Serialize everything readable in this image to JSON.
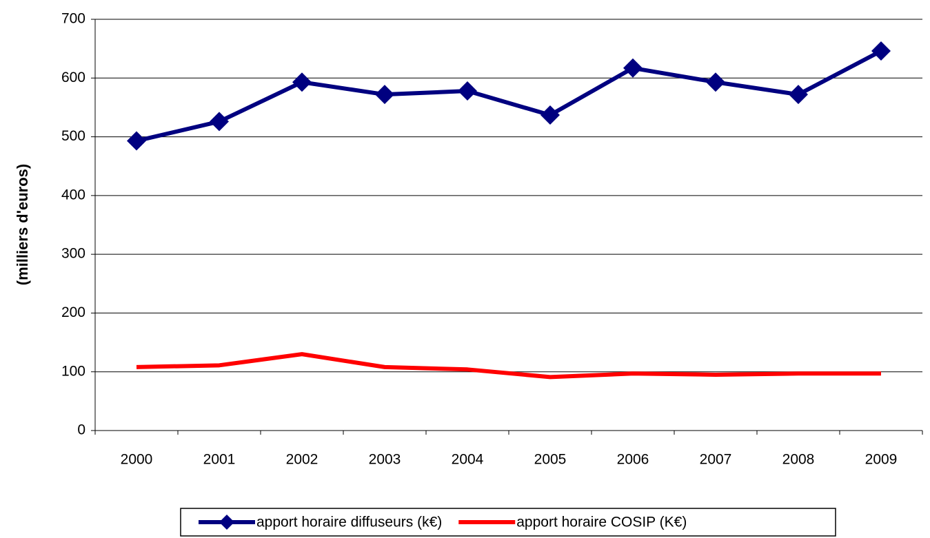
{
  "chart_data": {
    "type": "line",
    "y_label": "(milliers d'euros)",
    "categories": [
      "2000",
      "2001",
      "2002",
      "2003",
      "2004",
      "2005",
      "2006",
      "2007",
      "2008",
      "2009"
    ],
    "series": [
      {
        "name": "apport horaire diffuseurs (k€)",
        "color": "#000080",
        "marker": "diamond",
        "values": [
          493,
          526,
          593,
          572,
          578,
          537,
          617,
          593,
          572,
          646
        ]
      },
      {
        "name": "apport horaire COSIP (K€)",
        "color": "#ff0000",
        "marker": "none",
        "values": [
          108,
          111,
          130,
          108,
          104,
          91,
          97,
          95,
          97,
          97
        ]
      }
    ],
    "ylim": [
      0,
      700
    ],
    "yticks": [
      0,
      100,
      200,
      300,
      400,
      500,
      600,
      700
    ],
    "grid": true,
    "legend": "bottom"
  }
}
